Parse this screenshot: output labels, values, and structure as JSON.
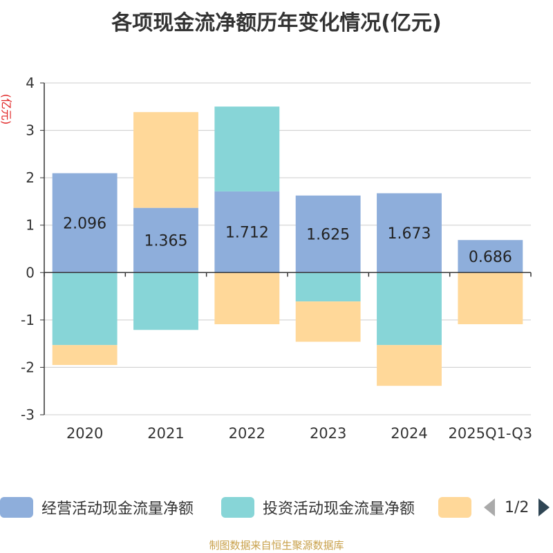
{
  "title": "各项现金流净额历年变化情况(亿元)",
  "unit_label": "(亿元)",
  "source": "制图数据来自恒生聚源数据库",
  "legend": {
    "items": [
      {
        "label": "经营活动现金流量净额",
        "color": "#8eaedb"
      },
      {
        "label": "投资活动现金流量净额",
        "color": "#87d5d7"
      },
      {
        "label": "",
        "color": "#ffd899"
      }
    ],
    "page": "1/2"
  },
  "chart_data": {
    "type": "bar",
    "stacked": true,
    "categories": [
      "2020",
      "2021",
      "2022",
      "2023",
      "2024",
      "2025Q1-Q3"
    ],
    "ylim": [
      -3,
      4
    ],
    "yticks": [
      -3,
      -2,
      -1,
      0,
      1,
      2,
      3,
      4
    ],
    "grid": true,
    "legend_position": "bottom",
    "series": [
      {
        "name": "经营活动现金流量净额",
        "color": "#8eaedb",
        "values": [
          2.096,
          1.365,
          1.712,
          1.625,
          1.673,
          0.686
        ],
        "labels": [
          "2.096",
          "1.365",
          "1.712",
          "1.625",
          "1.673",
          "0.686"
        ]
      },
      {
        "name": "投资活动现金流量净额",
        "color": "#87d5d7",
        "values": [
          -1.53,
          -1.21,
          1.79,
          -0.61,
          -1.53,
          0.0
        ]
      },
      {
        "color": "#ffd899",
        "values": [
          -0.42,
          2.02,
          -1.09,
          -0.85,
          -0.86,
          -1.09
        ]
      }
    ]
  }
}
